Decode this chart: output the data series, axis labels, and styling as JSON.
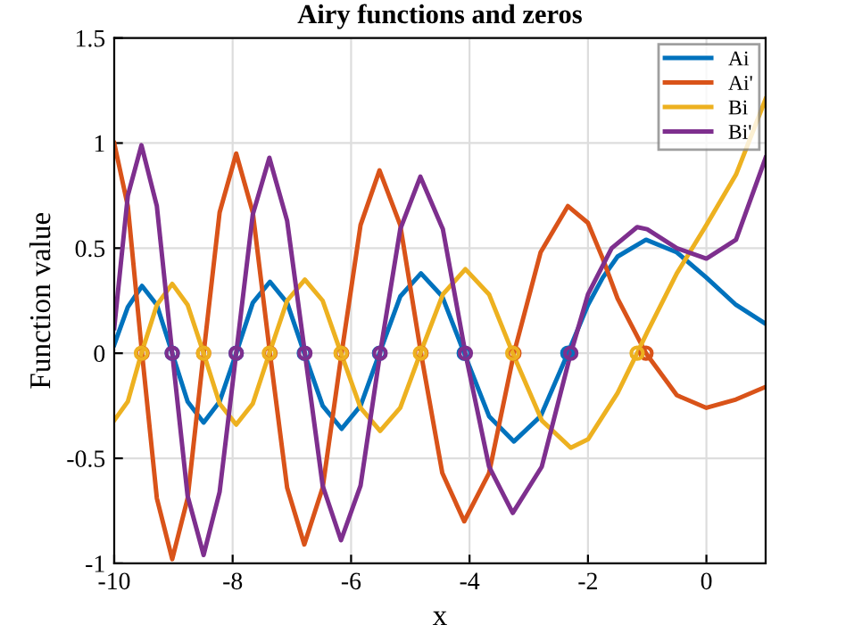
{
  "chart_data": {
    "type": "line",
    "title": "Airy functions and zeros",
    "xlabel": "x",
    "ylabel": "Function value",
    "xlim": [
      -10,
      1
    ],
    "ylim": [
      -1,
      1.5
    ],
    "xticks": [
      -10,
      -8,
      -6,
      -4,
      -2,
      0
    ],
    "yticks": [
      -1,
      -0.5,
      0,
      0.5,
      1,
      1.5
    ],
    "grid": true,
    "legend": "top right",
    "marker": "none",
    "line_style": "solid",
    "series": [
      {
        "name": "Ai",
        "color": "#0072bd",
        "x": [
          -10,
          -9.77,
          -9.53,
          -9.28,
          -9.02,
          -8.76,
          -8.49,
          -8.22,
          -7.94,
          -7.66,
          -7.37,
          -7.08,
          -6.79,
          -6.48,
          -6.16,
          -5.84,
          -5.52,
          -5.17,
          -4.82,
          -4.46,
          -4.09,
          -3.67,
          -3.25,
          -2.8,
          -2.34,
          -2,
          -1.75,
          -1.5,
          -1.02,
          -0.5,
          0,
          0.5,
          1
        ],
        "values": [
          0.04,
          0.22,
          0.32,
          0.23,
          0,
          -0.23,
          -0.33,
          -0.23,
          0,
          0.24,
          0.34,
          0.24,
          0,
          -0.25,
          -0.36,
          -0.25,
          0,
          0.27,
          0.38,
          0.27,
          0,
          -0.3,
          -0.42,
          -0.3,
          0,
          0.23,
          0.36,
          0.46,
          0.54,
          0.48,
          0.36,
          0.23,
          0.14
        ]
      },
      {
        "name": "Ai'",
        "color": "#d95319",
        "x": [
          -10,
          -9.77,
          -9.53,
          -9.28,
          -9.02,
          -8.76,
          -8.49,
          -8.22,
          -7.94,
          -7.66,
          -7.37,
          -7.08,
          -6.79,
          -6.48,
          -6.16,
          -5.84,
          -5.52,
          -5.17,
          -4.82,
          -4.46,
          -4.09,
          -3.67,
          -3.25,
          -2.8,
          -2.34,
          -2,
          -1.75,
          -1.5,
          -1.02,
          -0.5,
          0,
          0.5,
          1
        ],
        "values": [
          1.0,
          0.7,
          0,
          -0.69,
          -0.98,
          -0.69,
          0,
          0.67,
          0.95,
          0.67,
          0,
          -0.64,
          -0.91,
          -0.64,
          0,
          0.61,
          0.87,
          0.61,
          0,
          -0.57,
          -0.8,
          -0.57,
          0,
          0.48,
          0.7,
          0.62,
          0.45,
          0.26,
          0,
          -0.2,
          -0.26,
          -0.22,
          -0.16
        ]
      },
      {
        "name": "Bi",
        "color": "#edb120",
        "x": [
          -10,
          -9.77,
          -9.54,
          -9.28,
          -9.02,
          -8.76,
          -8.49,
          -8.22,
          -7.94,
          -7.66,
          -7.38,
          -7.08,
          -6.78,
          -6.48,
          -6.17,
          -5.84,
          -5.51,
          -5.17,
          -4.83,
          -4.45,
          -4.07,
          -3.67,
          -3.27,
          -2.78,
          -2.29,
          -2,
          -1.5,
          -1.17,
          -1,
          -0.5,
          0,
          0.5,
          1
        ],
        "values": [
          -0.32,
          -0.23,
          0,
          0.23,
          0.33,
          0.23,
          0,
          -0.24,
          -0.34,
          -0.24,
          0,
          0.25,
          0.35,
          0.25,
          0,
          -0.26,
          -0.37,
          -0.26,
          0,
          0.28,
          0.4,
          0.28,
          0,
          -0.32,
          -0.45,
          -0.41,
          -0.19,
          0,
          0.1,
          0.38,
          0.61,
          0.85,
          1.21
        ]
      },
      {
        "name": "Bi'",
        "color": "#7e2f8e",
        "x": [
          -10,
          -9.77,
          -9.54,
          -9.28,
          -9.02,
          -8.76,
          -8.49,
          -8.22,
          -7.94,
          -7.66,
          -7.38,
          -7.08,
          -6.78,
          -6.48,
          -6.17,
          -5.84,
          -5.51,
          -5.17,
          -4.83,
          -4.45,
          -4.07,
          -3.67,
          -3.27,
          -2.78,
          -2.29,
          -2,
          -1.6,
          -1.17,
          -1,
          -0.5,
          0,
          0.5,
          1
        ],
        "values": [
          0.12,
          0.75,
          0.99,
          0.7,
          0,
          -0.68,
          -0.96,
          -0.66,
          0,
          0.66,
          0.93,
          0.63,
          0,
          -0.63,
          -0.89,
          -0.63,
          0,
          0.59,
          0.84,
          0.59,
          0,
          -0.54,
          -0.76,
          -0.54,
          0,
          0.28,
          0.5,
          0.6,
          0.59,
          0.5,
          0.45,
          0.54,
          0.93
        ]
      },
      {
        "type": "scatter",
        "marker": "circle",
        "color": "#0072bd",
        "x": [
          -9.02,
          -7.94,
          -6.79,
          -5.52,
          -4.09,
          -2.34
        ],
        "values": [
          0,
          0,
          0,
          0,
          0,
          0
        ]
      },
      {
        "type": "scatter",
        "marker": "circle",
        "color": "#d95319",
        "x": [
          -9.53,
          -8.49,
          -7.37,
          -6.16,
          -4.82,
          -3.25,
          -1.02
        ],
        "values": [
          0,
          0,
          0,
          0,
          0,
          0,
          0
        ]
      },
      {
        "type": "scatter",
        "marker": "circle",
        "color": "#edb120",
        "x": [
          -9.54,
          -8.49,
          -7.38,
          -6.17,
          -4.83,
          -3.27,
          -1.17
        ],
        "values": [
          0,
          0,
          0,
          0,
          0,
          0,
          0
        ]
      },
      {
        "type": "scatter",
        "marker": "circle",
        "color": "#7e2f8e",
        "x": [
          -9.02,
          -7.94,
          -6.78,
          -5.51,
          -4.07,
          -2.29
        ],
        "values": [
          0,
          0,
          0,
          0,
          0,
          0
        ]
      }
    ]
  }
}
